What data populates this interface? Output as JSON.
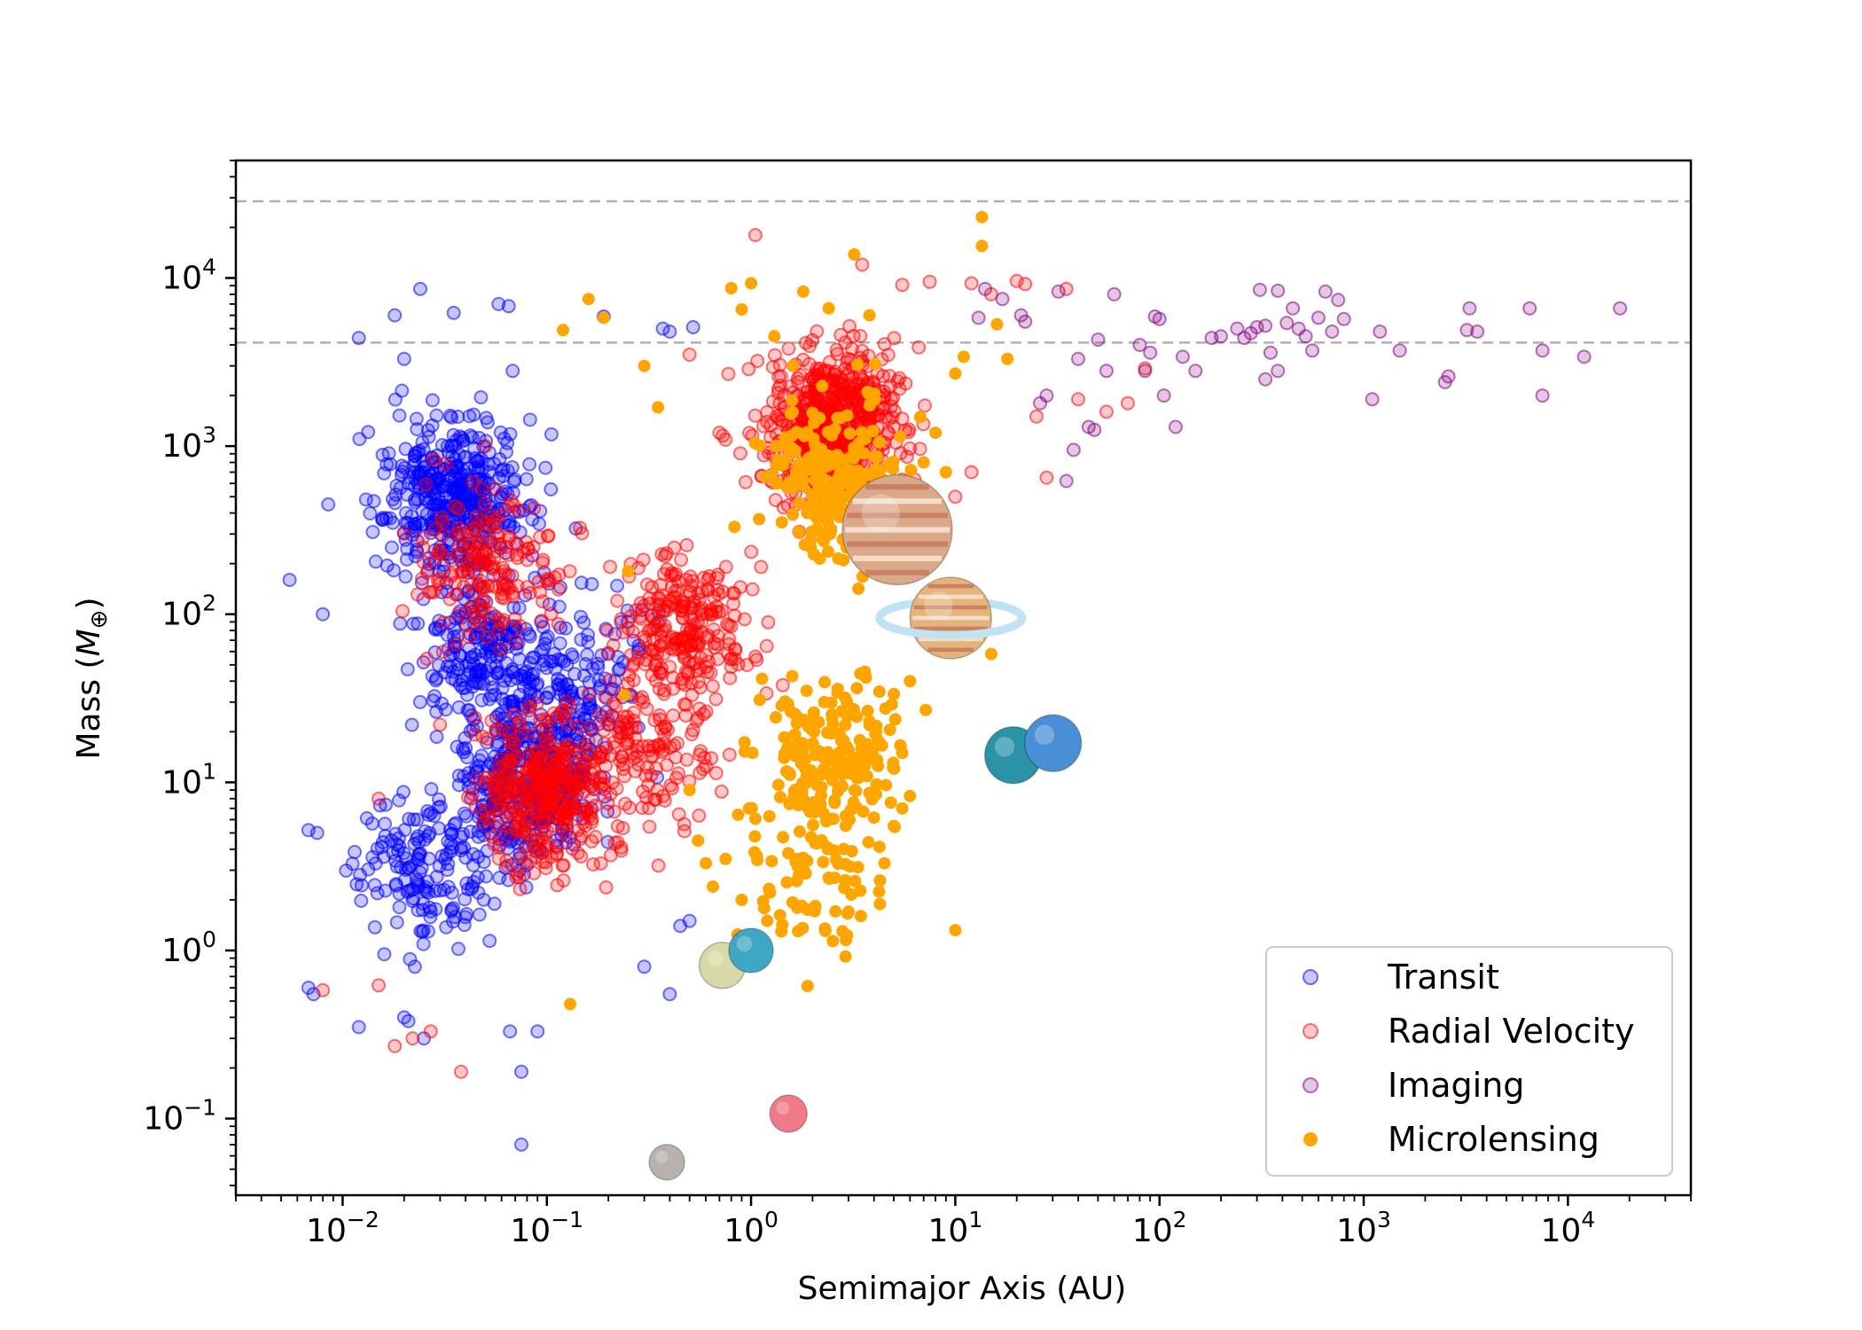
{
  "chart_data": {
    "type": "scatter",
    "title": "",
    "xlabel": "Semimajor Axis (AU)",
    "ylabel": "Mass (M⊕)",
    "xscale": "log",
    "yscale": "log",
    "xlim": [
      0.003,
      40000
    ],
    "ylim": [
      0.035,
      50000
    ],
    "x_ticks": [
      {
        "base": "10",
        "exp": "−2",
        "value": 0.01
      },
      {
        "base": "10",
        "exp": "−1",
        "value": 0.1
      },
      {
        "base": "10",
        "exp": "0",
        "value": 1
      },
      {
        "base": "10",
        "exp": "1",
        "value": 10
      },
      {
        "base": "10",
        "exp": "2",
        "value": 100
      },
      {
        "base": "10",
        "exp": "3",
        "value": 1000
      },
      {
        "base": "10",
        "exp": "4",
        "value": 10000
      }
    ],
    "y_ticks": [
      {
        "base": "10",
        "exp": "−1",
        "value": 0.1
      },
      {
        "base": "10",
        "exp": "0",
        "value": 1
      },
      {
        "base": "10",
        "exp": "1",
        "value": 10
      },
      {
        "base": "10",
        "exp": "2",
        "value": 100
      },
      {
        "base": "10",
        "exp": "3",
        "value": 1000
      },
      {
        "base": "10",
        "exp": "4",
        "value": 10000
      }
    ],
    "grid": false,
    "legend_position": "lower-right",
    "reference_lines": [
      {
        "axis": "y",
        "value": 28600,
        "style": "dashed",
        "color": "#b0b0b0"
      },
      {
        "axis": "y",
        "value": 4130,
        "style": "dashed",
        "color": "#b0b0b0"
      }
    ],
    "series": [
      {
        "name": "Transit",
        "color": "#0000ff",
        "filled": false,
        "cluster_regions": [
          {
            "x_center": 0.035,
            "y_center": 500,
            "count": 420
          },
          {
            "x_center": 0.08,
            "y_center": 10,
            "count": 380
          },
          {
            "x_center": 0.05,
            "y_center": 60,
            "count": 220
          },
          {
            "x_center": 0.025,
            "y_center": 3,
            "count": 160
          },
          {
            "x_center": 0.15,
            "y_center": 40,
            "count": 120
          }
        ],
        "points": [
          [
            0.0055,
            160
          ],
          [
            0.008,
            100
          ],
          [
            0.0085,
            450
          ],
          [
            0.012,
            4400
          ],
          [
            0.018,
            6000
          ],
          [
            0.02,
            3300
          ],
          [
            0.024,
            8600
          ],
          [
            0.035,
            6200
          ],
          [
            0.058,
            7000
          ],
          [
            0.065,
            6800
          ],
          [
            0.068,
            2800
          ],
          [
            0.19,
            5900
          ],
          [
            0.37,
            5000
          ],
          [
            0.4,
            4800
          ],
          [
            0.52,
            5100
          ],
          [
            0.0068,
            0.6
          ],
          [
            0.0072,
            0.55
          ],
          [
            0.012,
            0.35
          ],
          [
            0.02,
            0.4
          ],
          [
            0.021,
            0.38
          ],
          [
            0.066,
            0.33
          ],
          [
            0.075,
            0.19
          ],
          [
            0.075,
            0.07
          ],
          [
            0.09,
            0.33
          ],
          [
            0.0068,
            5.2
          ],
          [
            0.0075,
            5.0
          ],
          [
            0.016,
            0.95
          ],
          [
            0.025,
            0.3
          ],
          [
            0.45,
            1.4
          ],
          [
            0.5,
            1.5
          ],
          [
            0.4,
            0.55
          ],
          [
            0.3,
            0.8
          ]
        ]
      },
      {
        "name": "Radial Velocity",
        "color": "#ff0000",
        "filled": false,
        "cluster_regions": [
          {
            "x_center": 2.5,
            "y_center": 1300,
            "count": 600
          },
          {
            "x_center": 0.1,
            "y_center": 8,
            "count": 350
          },
          {
            "x_center": 0.5,
            "y_center": 80,
            "count": 250
          },
          {
            "x_center": 0.05,
            "y_center": 200,
            "count": 180
          },
          {
            "x_center": 0.3,
            "y_center": 15,
            "count": 150
          }
        ],
        "points": [
          [
            0.008,
            0.58
          ],
          [
            0.015,
            0.62
          ],
          [
            0.018,
            0.27
          ],
          [
            0.022,
            0.3
          ],
          [
            0.027,
            0.33
          ],
          [
            0.038,
            0.19
          ],
          [
            0.03,
            22
          ],
          [
            0.015,
            8.0
          ],
          [
            1.05,
            18000
          ],
          [
            7.5,
            9500
          ],
          [
            12,
            9300
          ],
          [
            15,
            8000
          ],
          [
            20,
            9600
          ],
          [
            22,
            9200
          ],
          [
            35,
            8600
          ],
          [
            3.5,
            12000
          ],
          [
            5.5,
            9100
          ],
          [
            25,
            1500
          ],
          [
            28,
            650
          ],
          [
            40,
            1900
          ],
          [
            55,
            1600
          ],
          [
            70,
            1800
          ],
          [
            85,
            2900
          ],
          [
            0.5,
            3500
          ],
          [
            0.7,
            1200
          ],
          [
            0.05,
            1000
          ],
          [
            10,
            500
          ],
          [
            12,
            700
          ]
        ]
      },
      {
        "name": "Imaging",
        "color": "#800080",
        "filled": false,
        "points": [
          [
            13,
            5800
          ],
          [
            14,
            8600
          ],
          [
            17,
            7500
          ],
          [
            21,
            6000
          ],
          [
            22,
            5500
          ],
          [
            32,
            8300
          ],
          [
            40,
            3300
          ],
          [
            50,
            4300
          ],
          [
            55,
            2800
          ],
          [
            60,
            8000
          ],
          [
            80,
            4000
          ],
          [
            85,
            2800
          ],
          [
            90,
            3600
          ],
          [
            95,
            5900
          ],
          [
            100,
            5700
          ],
          [
            105,
            2000
          ],
          [
            120,
            1300
          ],
          [
            130,
            3400
          ],
          [
            150,
            2800
          ],
          [
            180,
            4400
          ],
          [
            200,
            4500
          ],
          [
            240,
            5000
          ],
          [
            260,
            4400
          ],
          [
            280,
            4700
          ],
          [
            300,
            5100
          ],
          [
            310,
            8500
          ],
          [
            330,
            2500
          ],
          [
            330,
            5200
          ],
          [
            350,
            3600
          ],
          [
            380,
            2800
          ],
          [
            380,
            8400
          ],
          [
            420,
            5400
          ],
          [
            450,
            6600
          ],
          [
            480,
            5000
          ],
          [
            520,
            4500
          ],
          [
            560,
            3700
          ],
          [
            600,
            5800
          ],
          [
            650,
            8300
          ],
          [
            700,
            4800
          ],
          [
            750,
            7400
          ],
          [
            800,
            5700
          ],
          [
            1100,
            1900
          ],
          [
            1200,
            4800
          ],
          [
            1500,
            3700
          ],
          [
            2500,
            2400
          ],
          [
            2600,
            2600
          ],
          [
            3200,
            4900
          ],
          [
            3300,
            6600
          ],
          [
            3600,
            4800
          ],
          [
            6500,
            6600
          ],
          [
            7500,
            3700
          ],
          [
            7500,
            2000
          ],
          [
            12000,
            3400
          ],
          [
            18000,
            6600
          ],
          [
            35,
            620
          ],
          [
            38,
            950
          ],
          [
            45,
            1300
          ],
          [
            48,
            1250
          ],
          [
            28,
            2000
          ],
          [
            26,
            1800
          ]
        ]
      },
      {
        "name": "Microlensing",
        "color": "#ffa500",
        "filled": true,
        "cluster_regions": [
          {
            "x_center": 2.5,
            "y_center": 600,
            "count": 220
          },
          {
            "x_center": 2.5,
            "y_center": 15,
            "count": 200
          },
          {
            "x_center": 2.0,
            "y_center": 3,
            "count": 80
          }
        ],
        "points": [
          [
            13.5,
            23000
          ],
          [
            13.5,
            15500
          ],
          [
            3.2,
            13800
          ],
          [
            0.16,
            7500
          ],
          [
            0.19,
            5800
          ],
          [
            0.12,
            4900
          ],
          [
            0.9,
            6500
          ],
          [
            1.3,
            4500
          ],
          [
            1.6,
            3000
          ],
          [
            0.3,
            3000
          ],
          [
            0.35,
            1700
          ],
          [
            0.25,
            180
          ],
          [
            0.13,
            0.48
          ],
          [
            0.24,
            33
          ],
          [
            0.5,
            9
          ],
          [
            0.55,
            4.5
          ],
          [
            0.6,
            3.3
          ],
          [
            0.65,
            2.4
          ],
          [
            0.75,
            3.5
          ],
          [
            0.9,
            2.0
          ],
          [
            1.2,
            1.5
          ],
          [
            1.7,
            1.3
          ],
          [
            2.3,
            1.35
          ],
          [
            2.9,
            0.92
          ],
          [
            2.8,
            1.3
          ],
          [
            3.0,
            1.7
          ],
          [
            10,
            1.32
          ],
          [
            4.5,
            3.3
          ],
          [
            5.0,
            5.5
          ],
          [
            5.5,
            7.0
          ],
          [
            6.0,
            8.3
          ],
          [
            5.5,
            15
          ],
          [
            6.0,
            40
          ],
          [
            7.0,
            800
          ],
          [
            8.0,
            1200
          ],
          [
            9.0,
            700
          ],
          [
            10,
            2700
          ],
          [
            11,
            3400
          ],
          [
            15,
            58
          ],
          [
            16,
            5300
          ],
          [
            18,
            3300
          ],
          [
            1.0,
            9300
          ],
          [
            0.8,
            8700
          ],
          [
            1.8,
            8300
          ],
          [
            2.4,
            6600
          ],
          [
            3.8,
            6000
          ]
        ]
      }
    ],
    "solar_system_planets": [
      {
        "name": "Mercury",
        "a": 0.387,
        "mass": 0.055,
        "color": "#b9b1ad",
        "radius": 20
      },
      {
        "name": "Venus",
        "a": 0.723,
        "mass": 0.815,
        "color": "#d8d9a8",
        "radius": 26
      },
      {
        "name": "Earth",
        "a": 1.0,
        "mass": 1.0,
        "color": "#3ea7c4",
        "radius": 25
      },
      {
        "name": "Mars",
        "a": 1.524,
        "mass": 0.107,
        "color": "#f07a88",
        "radius": 21
      },
      {
        "name": "Jupiter",
        "a": 5.2,
        "mass": 318,
        "color": "#d9a98a",
        "radius": 62
      },
      {
        "name": "Saturn",
        "a": 9.5,
        "mass": 95,
        "color": "#e6b47a",
        "radius": 46
      },
      {
        "name": "Uranus",
        "a": 19.2,
        "mass": 14.5,
        "color": "#2b93a8",
        "radius": 32
      },
      {
        "name": "Neptune",
        "a": 30.1,
        "mass": 17.1,
        "color": "#4a8fd6",
        "radius": 32
      }
    ]
  },
  "legend": {
    "items": [
      {
        "label": "Transit",
        "color": "#0000ff",
        "marker": "hollow"
      },
      {
        "label": "Radial Velocity",
        "color": "#ff0000",
        "marker": "hollow"
      },
      {
        "label": "Imaging",
        "color": "#800080",
        "marker": "hollow"
      },
      {
        "label": "Microlensing",
        "color": "#ffa500",
        "marker": "filled"
      }
    ]
  }
}
